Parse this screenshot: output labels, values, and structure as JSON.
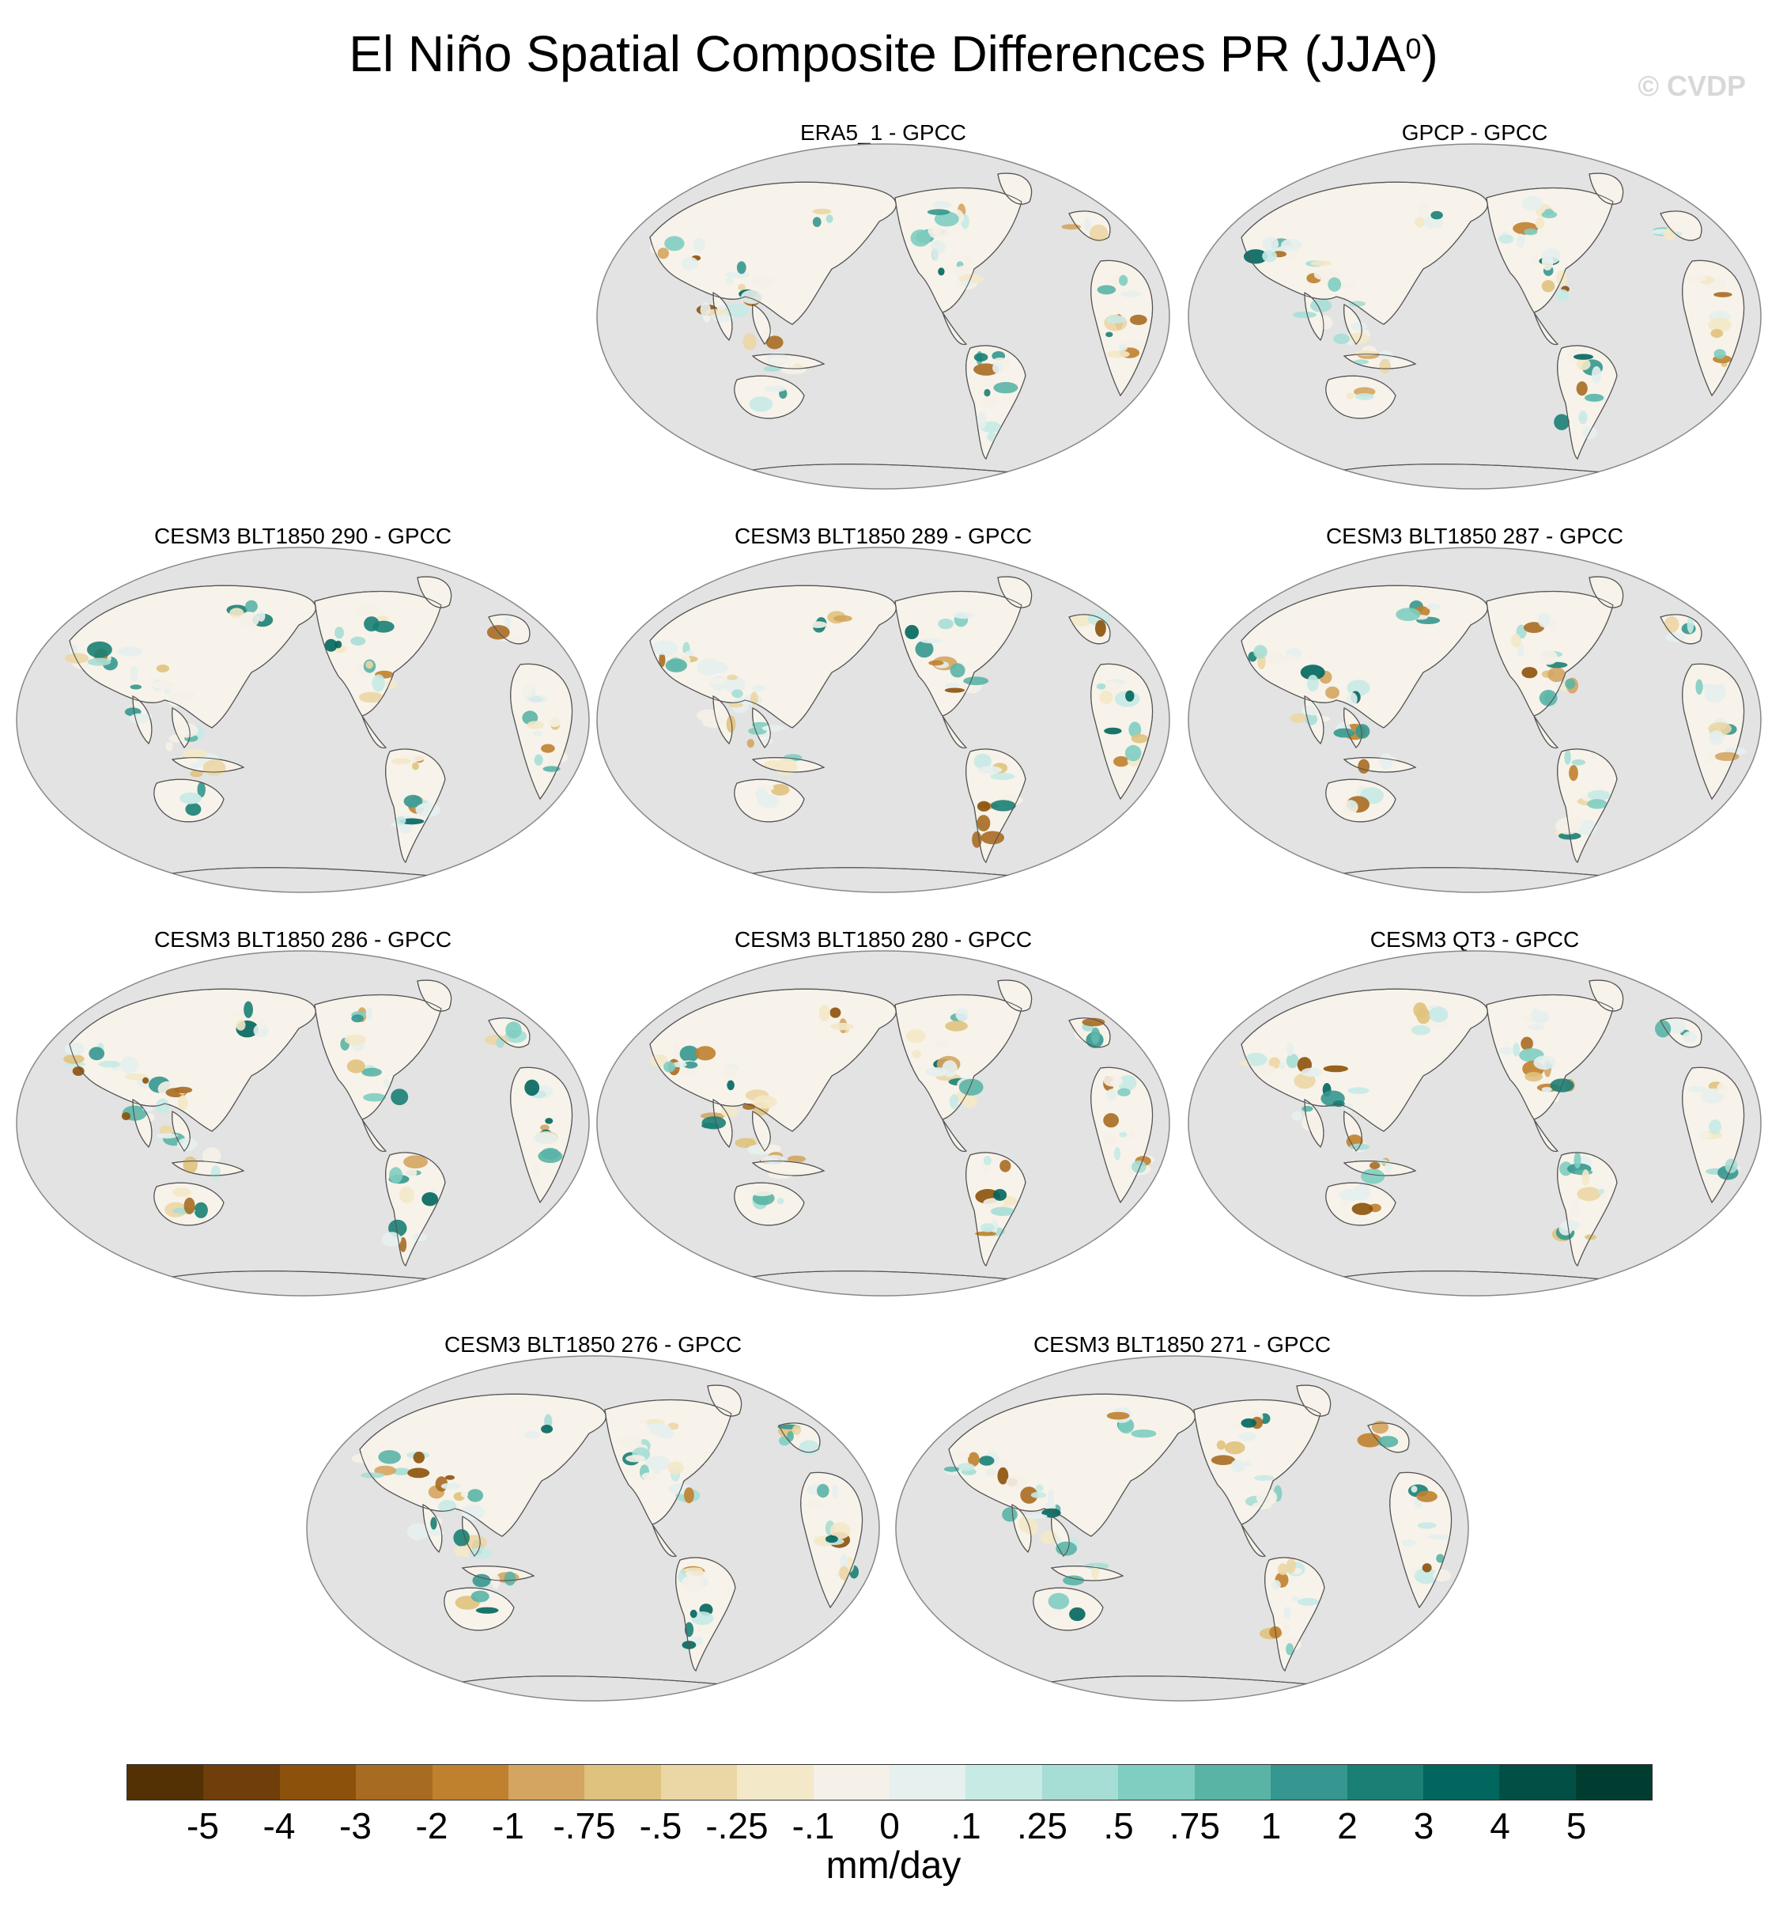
{
  "title": {
    "main": "El Niño Spatial Composite Differences PR (JJA",
    "superscript": "0",
    "close": ")"
  },
  "watermark": "© CVDP",
  "panels": [
    {
      "label": "ERA5_1 - GPCC"
    },
    {
      "label": "GPCP - GPCC"
    },
    {
      "label": "CESM3 BLT1850 290 - GPCC"
    },
    {
      "label": "CESM3 BLT1850 289 - GPCC"
    },
    {
      "label": "CESM3 BLT1850 287 - GPCC"
    },
    {
      "label": "CESM3 BLT1850 286 - GPCC"
    },
    {
      "label": "CESM3 BLT1850 280 - GPCC"
    },
    {
      "label": "CESM3 QT3 - GPCC"
    },
    {
      "label": "CESM3 BLT1850 276 - GPCC"
    },
    {
      "label": "CESM3 BLT1850 271 - GPCC"
    }
  ],
  "colorbar": {
    "units": "mm/day",
    "colors": [
      "#543005",
      "#6f3e0b",
      "#8c510a",
      "#a86b22",
      "#bf812d",
      "#d4a560",
      "#dfc27d",
      "#ebd6a5",
      "#f3e8c8",
      "#f5f1e8",
      "#e6f0ee",
      "#c7eae5",
      "#a6ded6",
      "#80cdc1",
      "#5ab4a6",
      "#35978f",
      "#1a7f74",
      "#01665e",
      "#024f46",
      "#003c30"
    ],
    "labels": [
      "-5",
      "-4",
      "-3",
      "-2",
      "-1",
      "-.75",
      "-.5",
      "-.25",
      "-.1",
      "0",
      ".1",
      ".25",
      ".5",
      ".75",
      "1",
      "2",
      "3",
      "4",
      "5"
    ]
  },
  "map_colors": {
    "ocean": "#e3e3e3",
    "land": "#f7f3ea",
    "coast": "#555555"
  }
}
